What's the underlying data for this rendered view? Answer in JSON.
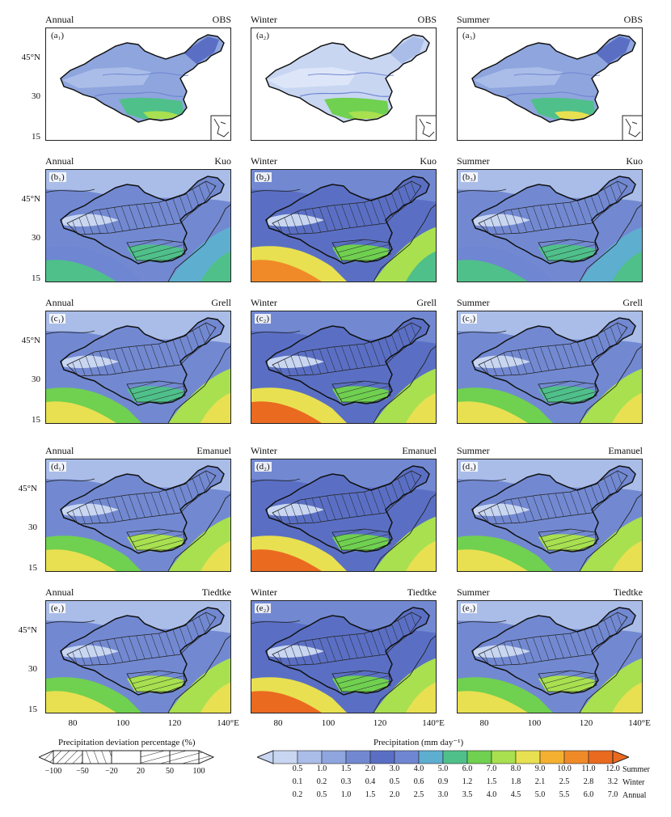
{
  "colors": {
    "ocean_obs": "#ffffff",
    "scale": [
      "#c8d6f2",
      "#aabde8",
      "#8ea5de",
      "#7289d2",
      "#5a6fc4",
      "#6f86d2",
      "#5eaed0",
      "#4fc08a",
      "#70d050",
      "#a8e050",
      "#e8e050",
      "#f4b030",
      "#f08a28",
      "#ea6a20"
    ]
  },
  "rows": [
    {
      "id": "a",
      "name": "OBS",
      "panels": [
        {
          "season": "Annual",
          "model": "OBS",
          "label": "(a₁)"
        },
        {
          "season": "Winter",
          "model": "OBS",
          "label": "(a₂)"
        },
        {
          "season": "Summer",
          "model": "OBS",
          "label": "(a₃)"
        }
      ]
    },
    {
      "id": "b",
      "name": "Kuo",
      "panels": [
        {
          "season": "Annual",
          "model": "Kuo",
          "label": "(b₁)"
        },
        {
          "season": "Winter",
          "model": "Kuo",
          "label": "(b₂)"
        },
        {
          "season": "Summer",
          "model": "Kuo",
          "label": "(b₃)"
        }
      ]
    },
    {
      "id": "c",
      "name": "Grell",
      "panels": [
        {
          "season": "Annual",
          "model": "Grell",
          "label": "(c₁)"
        },
        {
          "season": "Winter",
          "model": "Grell",
          "label": "(c₂)"
        },
        {
          "season": "Summer",
          "model": "Grell",
          "label": "(c₃)"
        }
      ]
    },
    {
      "id": "d",
      "name": "Emanuel",
      "panels": [
        {
          "season": "Annual",
          "model": "Emanuel",
          "label": "(d₁)"
        },
        {
          "season": "Winter",
          "model": "Emanuel",
          "label": "(d₂)"
        },
        {
          "season": "Summer",
          "model": "Emanuel",
          "label": "(d₃)"
        }
      ]
    },
    {
      "id": "e",
      "name": "Tiedtke",
      "panels": [
        {
          "season": "Annual",
          "model": "Tiedtke",
          "label": "(e₁)"
        },
        {
          "season": "Winter",
          "model": "Tiedtke",
          "label": "(e₂)"
        },
        {
          "season": "Summer",
          "model": "Tiedtke",
          "label": "(e₃)"
        }
      ]
    }
  ],
  "y_ticks": [
    "45°N",
    "30",
    "15"
  ],
  "x_ticks": [
    "80",
    "100",
    "120",
    "140°E"
  ],
  "hatch_legend": {
    "title": "Precipitation deviation percentage (%)",
    "labels": [
      "−100",
      "−50",
      "−20",
      "20",
      "50",
      "100"
    ]
  },
  "colorbar": {
    "title": "Precipitation (mm day⁻¹)",
    "summer": [
      "0.5",
      "1.0",
      "1.5",
      "2.0",
      "3.0",
      "4.0",
      "5.0",
      "6.0",
      "7.0",
      "8.0",
      "9.0",
      "10.0",
      "11.0",
      "12.0"
    ],
    "winter": [
      "0.1",
      "0.2",
      "0.3",
      "0.4",
      "0.5",
      "0.6",
      "0.9",
      "1.2",
      "1.5",
      "1.8",
      "2.1",
      "2.5",
      "2.8",
      "3.2"
    ],
    "annual": [
      "0.2",
      "0.5",
      "1.0",
      "1.5",
      "2.0",
      "2.5",
      "3.0",
      "3.5",
      "4.0",
      "4.5",
      "5.0",
      "5.5",
      "6.0",
      "7.0"
    ],
    "row_labels": [
      "Summer",
      "Winter",
      "Annual"
    ]
  }
}
